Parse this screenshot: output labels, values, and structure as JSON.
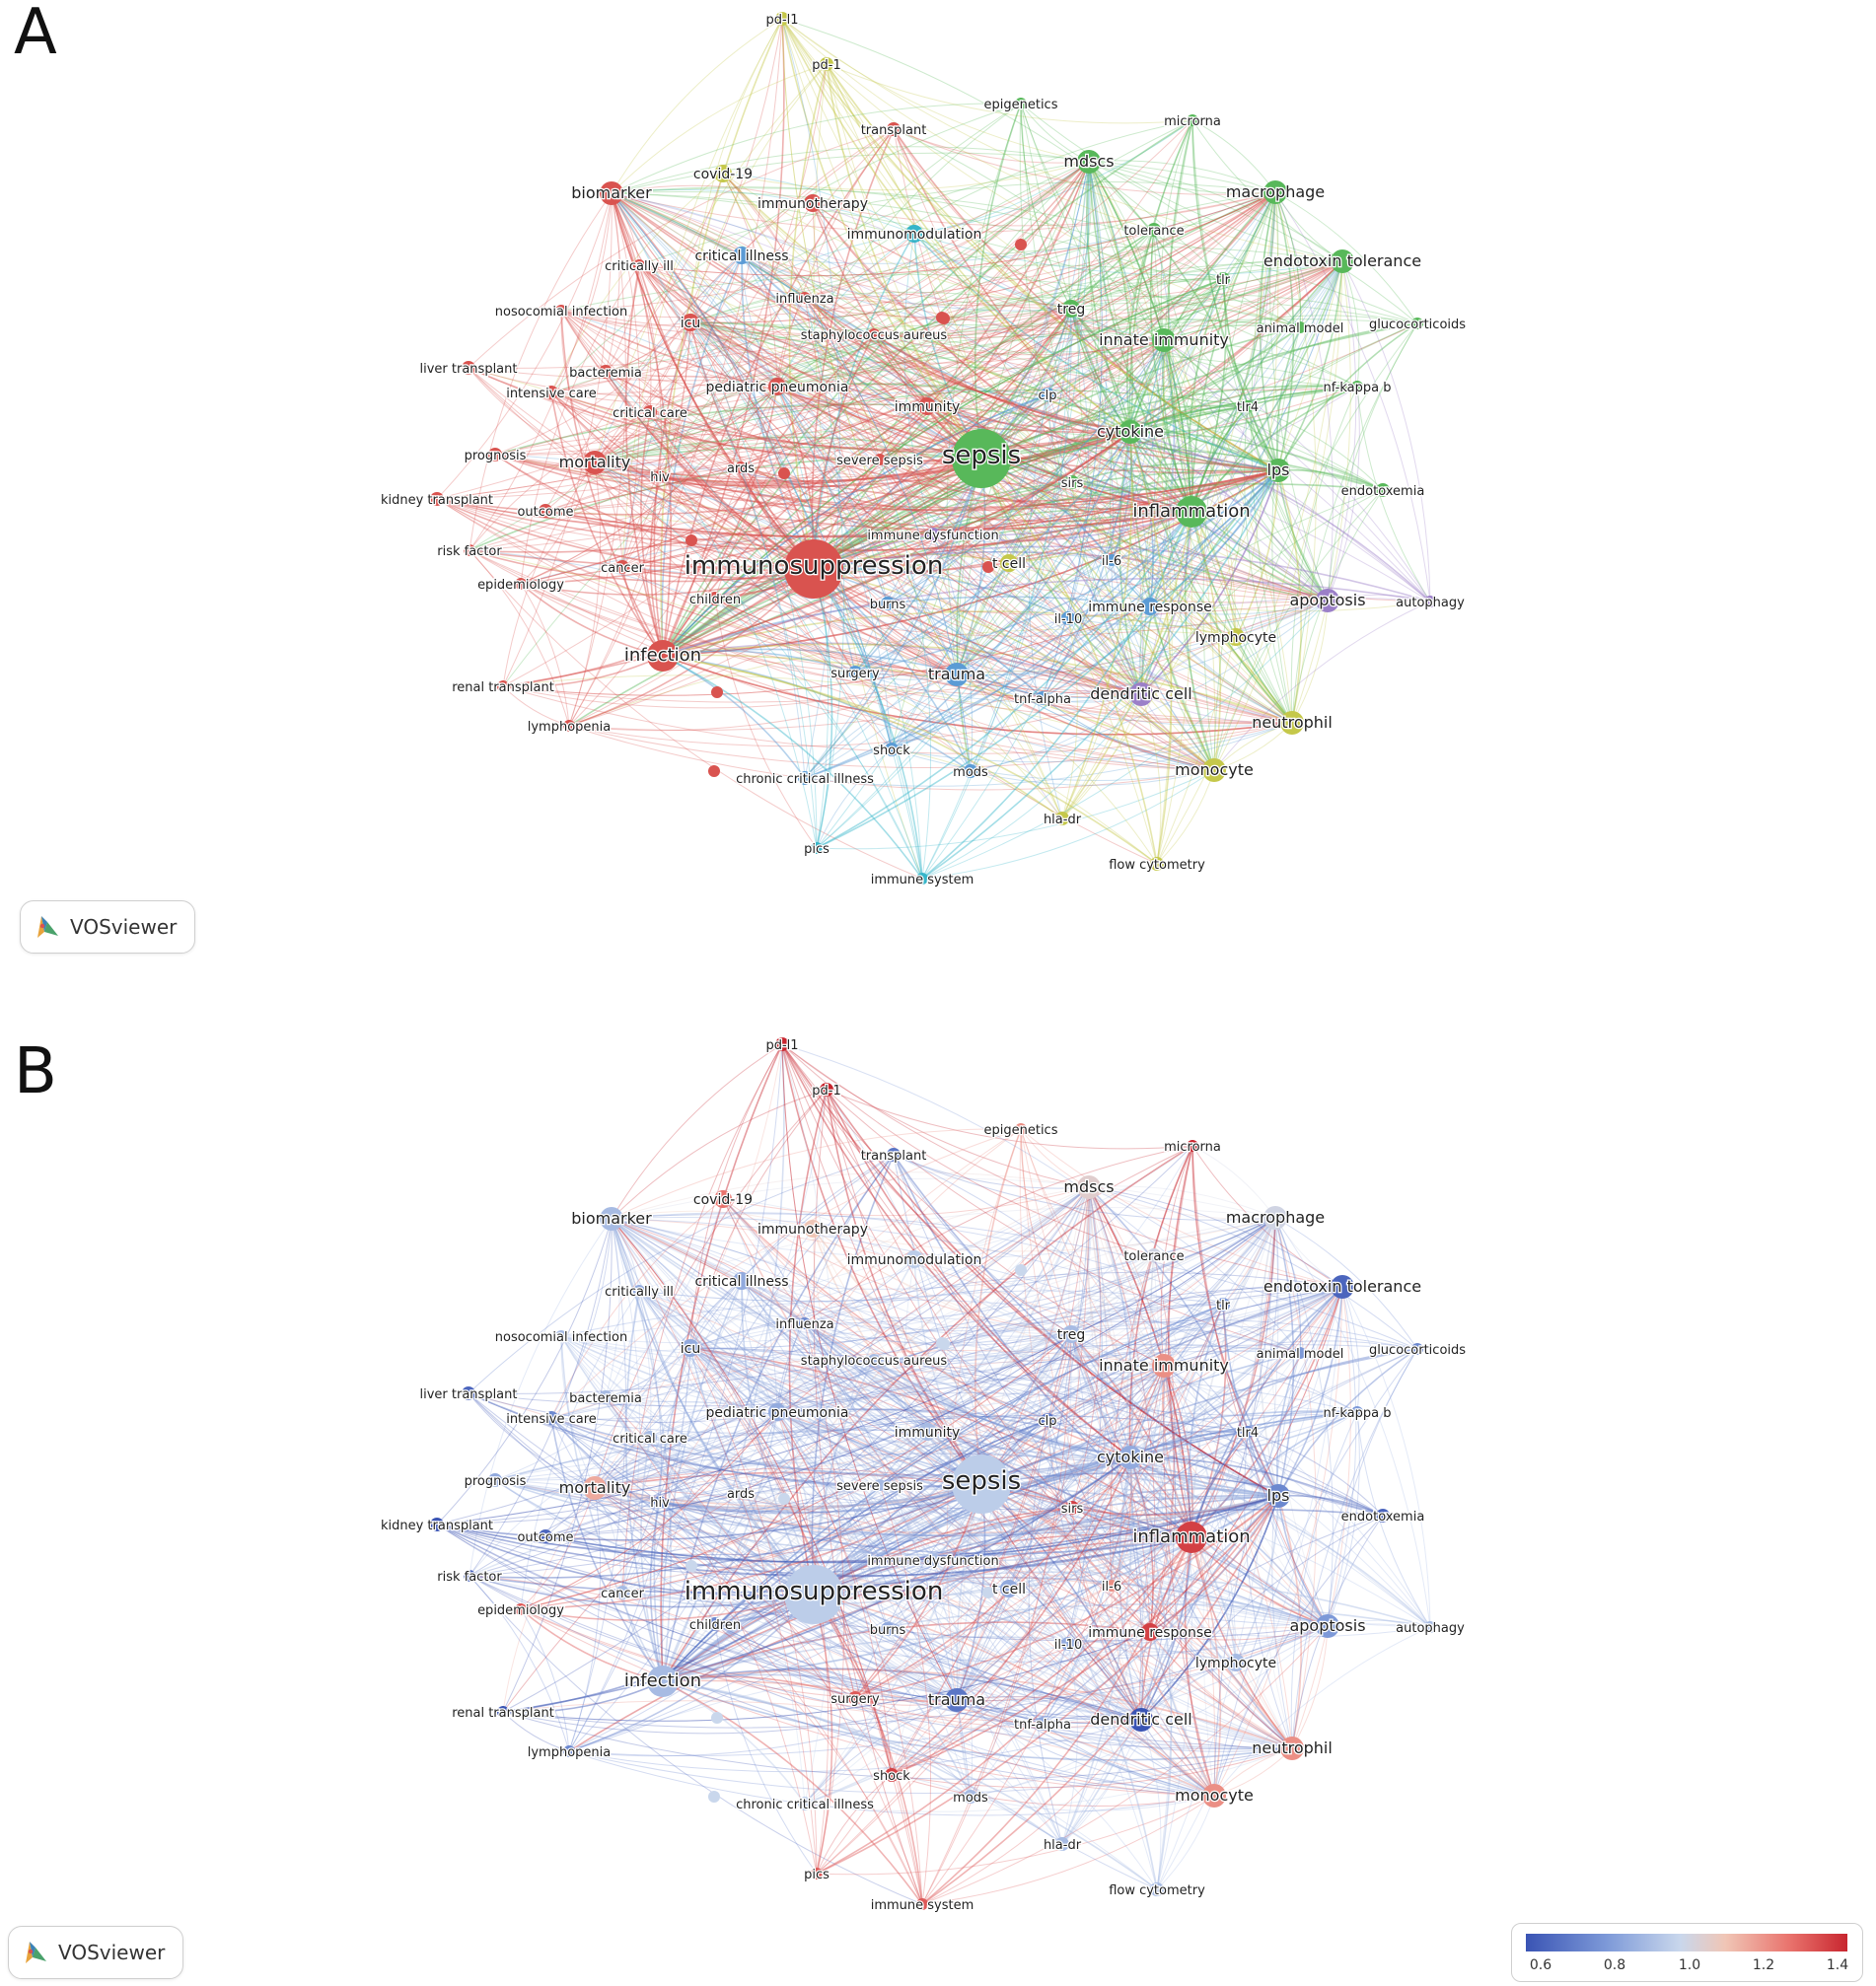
{
  "panels": [
    {
      "letter": "A",
      "badge_text": "VOSviewer",
      "mode": "cluster"
    },
    {
      "letter": "B",
      "badge_text": "VOSviewer",
      "mode": "overlay"
    }
  ],
  "colorbar": {
    "ticks": [
      "0.6",
      "0.8",
      "1.0",
      "1.2",
      "1.4"
    ]
  },
  "cluster_colors": {
    "red": "#d9534f",
    "green": "#58b85a",
    "blue": "#5b9bd5",
    "yellow": "#c5c84a",
    "purple": "#9b7fc8",
    "cyan": "#35b5c9"
  },
  "nodes": [
    {
      "label": "sepsis",
      "cluster": "green",
      "size": 2
    },
    {
      "label": "immunosuppression",
      "cluster": "red",
      "size": 2
    },
    {
      "label": "inflammation",
      "cluster": "green",
      "size": 1.5
    },
    {
      "label": "infection",
      "cluster": "red",
      "size": 1.4
    },
    {
      "label": "cytokine",
      "cluster": "green",
      "size": 1.3
    },
    {
      "label": "lps",
      "cluster": "green",
      "size": 1.2
    },
    {
      "label": "mortality",
      "cluster": "red",
      "size": 1.2
    },
    {
      "label": "apoptosis",
      "cluster": "purple",
      "size": 1.2
    },
    {
      "label": "macrophage",
      "cluster": "green",
      "size": 1.2
    },
    {
      "label": "trauma",
      "cluster": "blue",
      "size": 1.2
    },
    {
      "label": "dendritic cell",
      "cluster": "purple",
      "size": 1.1
    },
    {
      "label": "neutrophil",
      "cluster": "yellow",
      "size": 1.1
    },
    {
      "label": "monocyte",
      "cluster": "yellow",
      "size": 1.1
    },
    {
      "label": "lymphocyte",
      "cluster": "yellow",
      "size": 1
    },
    {
      "label": "biomarker",
      "cluster": "red",
      "size": 1.1
    },
    {
      "label": "endotoxin tolerance",
      "cluster": "green",
      "size": 1.1
    },
    {
      "label": "innate immunity",
      "cluster": "green",
      "size": 1.1
    },
    {
      "label": "mdscs",
      "cluster": "green",
      "size": 1.1
    },
    {
      "label": "treg",
      "cluster": "green",
      "size": 1
    },
    {
      "label": "immunity",
      "cluster": "red",
      "size": 1
    },
    {
      "label": "pediatric pneumonia",
      "cluster": "red",
      "size": 1
    },
    {
      "label": "t cell",
      "cluster": "yellow",
      "size": 1
    },
    {
      "label": "icu",
      "cluster": "red",
      "size": 1
    },
    {
      "label": "immune response",
      "cluster": "blue",
      "size": 0.9
    },
    {
      "label": "covid-19",
      "cluster": "yellow",
      "size": 0.9
    },
    {
      "label": "immunotherapy",
      "cluster": "red",
      "size": 0.9
    },
    {
      "label": "immunomodulation",
      "cluster": "cyan",
      "size": 0.9
    },
    {
      "label": "critical illness",
      "cluster": "blue",
      "size": 0.9
    },
    {
      "label": "transplant",
      "cluster": "red",
      "size": 0.8
    },
    {
      "label": "pd-1",
      "cluster": "yellow",
      "size": 0.8
    },
    {
      "label": "pd-l1",
      "cluster": "yellow",
      "size": 0.8
    },
    {
      "label": "epigenetics",
      "cluster": "green",
      "size": 0.7
    },
    {
      "label": "microrna",
      "cluster": "green",
      "size": 0.7
    },
    {
      "label": "tolerance",
      "cluster": "green",
      "size": 0.8
    },
    {
      "label": "tlr",
      "cluster": "green",
      "size": 0.8
    },
    {
      "label": "animal model",
      "cluster": "green",
      "size": 0.7
    },
    {
      "label": "glucocorticoids",
      "cluster": "green",
      "size": 0.7
    },
    {
      "label": "nf-kappa b",
      "cluster": "green",
      "size": 0.7
    },
    {
      "label": "tlr4",
      "cluster": "green",
      "size": 0.7
    },
    {
      "label": "endotoxemia",
      "cluster": "green",
      "size": 0.8
    },
    {
      "label": "autophagy",
      "cluster": "purple",
      "size": 0.7
    },
    {
      "label": "clp",
      "cluster": "blue",
      "size": 0.8
    },
    {
      "label": "sirs",
      "cluster": "green",
      "size": 0.8
    },
    {
      "label": "il-6",
      "cluster": "blue",
      "size": 0.7
    },
    {
      "label": "il-10",
      "cluster": "blue",
      "size": 0.8
    },
    {
      "label": "tnf-alpha",
      "cluster": "blue",
      "size": 0.8
    },
    {
      "label": "immune dysfunction",
      "cluster": "purple",
      "size": 0.8
    },
    {
      "label": "severe sepsis",
      "cluster": "red",
      "size": 0.7
    },
    {
      "label": "staphylococcus aureus",
      "cluster": "red",
      "size": 0.7
    },
    {
      "label": "influenza",
      "cluster": "red",
      "size": 0.7
    },
    {
      "label": "critically ill",
      "cluster": "red",
      "size": 0.7
    },
    {
      "label": "nosocomial infection",
      "cluster": "red",
      "size": 0.7
    },
    {
      "label": "bacteremia",
      "cluster": "red",
      "size": 0.8
    },
    {
      "label": "liver transplant",
      "cluster": "red",
      "size": 0.8
    },
    {
      "label": "intensive care",
      "cluster": "red",
      "size": 0.8
    },
    {
      "label": "critical care",
      "cluster": "red",
      "size": 0.8
    },
    {
      "label": "prognosis",
      "cluster": "red",
      "size": 0.8
    },
    {
      "label": "hiv",
      "cluster": "red",
      "size": 0.7
    },
    {
      "label": "ards",
      "cluster": "red",
      "size": 0.7
    },
    {
      "label": "kidney transplant",
      "cluster": "red",
      "size": 0.8
    },
    {
      "label": "outcome",
      "cluster": "red",
      "size": 0.8
    },
    {
      "label": "risk factor",
      "cluster": "red",
      "size": 0.7
    },
    {
      "label": "epidemiology",
      "cluster": "red",
      "size": 0.7
    },
    {
      "label": "cancer",
      "cluster": "red",
      "size": 0.8
    },
    {
      "label": "children",
      "cluster": "red",
      "size": 0.8
    },
    {
      "label": "burns",
      "cluster": "blue",
      "size": 0.8
    },
    {
      "label": "surgery",
      "cluster": "blue",
      "size": 0.8
    },
    {
      "label": "renal transplant",
      "cluster": "red",
      "size": 0.7
    },
    {
      "label": "lymphopenia",
      "cluster": "red",
      "size": 0.7
    },
    {
      "label": "shock",
      "cluster": "blue",
      "size": 0.8
    },
    {
      "label": "mods",
      "cluster": "blue",
      "size": 0.8
    },
    {
      "label": "chronic critical illness",
      "cluster": "blue",
      "size": 0.8
    },
    {
      "label": "hla-dr",
      "cluster": "yellow",
      "size": 0.8
    },
    {
      "label": "pics",
      "cluster": "cyan",
      "size": 0.7
    },
    {
      "label": "immune system",
      "cluster": "cyan",
      "size": 0.7
    },
    {
      "label": "flow cytometry",
      "cluster": "yellow",
      "size": 0.8
    }
  ]
}
